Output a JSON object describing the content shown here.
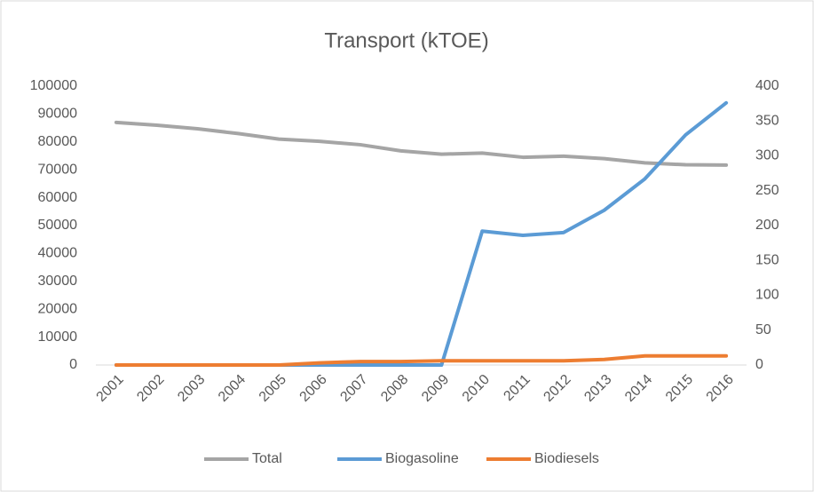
{
  "chart_data": {
    "type": "line",
    "title": "Transport (kTOE)",
    "categories": [
      "2001",
      "2002",
      "2003",
      "2004",
      "2005",
      "2006",
      "2007",
      "2008",
      "2009",
      "2010",
      "2011",
      "2012",
      "2013",
      "2014",
      "2015",
      "2016"
    ],
    "series": [
      {
        "name": "Total",
        "color": "#a5a5a5",
        "values": [
          87000,
          86000,
          84700,
          83000,
          81000,
          80200,
          79000,
          76800,
          75600,
          76000,
          74500,
          74900,
          74000,
          72500,
          71800,
          71700
        ]
      },
      {
        "name": "Biogasoline",
        "color": "#5b9bd5",
        "axis": "y2",
        "values": [
          0,
          0,
          0,
          0,
          0,
          0,
          0,
          0,
          0,
          192,
          186,
          190,
          222,
          267,
          330,
          376
        ]
      },
      {
        "name": "Biodiesels",
        "color": "#ed7d31",
        "axis": "y2",
        "values": [
          0,
          0,
          0,
          0,
          0,
          3,
          5,
          5,
          6,
          6,
          6,
          6,
          8,
          13,
          13,
          13
        ]
      }
    ],
    "ylim": [
      0,
      100000
    ],
    "yticks": [
      0,
      10000,
      20000,
      30000,
      40000,
      50000,
      60000,
      70000,
      80000,
      90000,
      100000
    ],
    "y2lim": [
      0,
      400
    ],
    "y2ticks": [
      0,
      50,
      100,
      150,
      200,
      250,
      300,
      350,
      400
    ],
    "grid": false,
    "legend": "bottom"
  }
}
